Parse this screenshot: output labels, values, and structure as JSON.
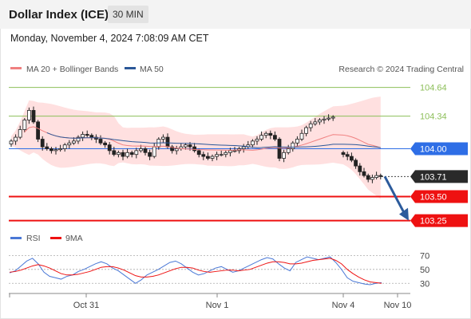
{
  "header": {
    "title": "Dollar Index (ICE)",
    "timeframe": "30 MIN",
    "timestamp": "Monday, November 4, 2024 7:08:09 AM CET"
  },
  "legend": {
    "ma20": "MA 20 + Bollinger Bands",
    "ma50": "MA 50",
    "credit": "Research © 2024 Trading Central",
    "rsi": "RSI",
    "rsi_ma": "9MA"
  },
  "colors": {
    "ma20": "#f08080",
    "ma50": "#2b5797",
    "bands": "#ffd6d6",
    "up": "#ffffff",
    "down": "#222222",
    "resistance": "#8dbf5a",
    "pivot": "#2e6ee6",
    "support": "#ee1111",
    "arrow": "#2c5b9c",
    "rsi": "#4a78d6",
    "rsi_ma": "#ee1111"
  },
  "chart_data": [
    {
      "type": "candlestick",
      "price_range": [
        103.18,
        104.72
      ],
      "x_ticks": [
        "Oct 31",
        "Nov 1",
        "Nov 4",
        "Nov 10"
      ],
      "levels": [
        {
          "label": "104.64",
          "value": 104.64,
          "kind": "resistance"
        },
        {
          "label": "104.34",
          "value": 104.34,
          "kind": "resistance"
        },
        {
          "label": "104.00",
          "value": 104.0,
          "kind": "pivot"
        },
        {
          "label": "103.71",
          "value": 103.71,
          "kind": "current"
        },
        {
          "label": "103.50",
          "value": 103.5,
          "kind": "support"
        },
        {
          "label": "103.25",
          "value": 103.25,
          "kind": "support"
        }
      ],
      "close_series": [
        104.08,
        104.12,
        104.2,
        104.3,
        104.4,
        104.28,
        104.1,
        104.02,
        104.0,
        103.98,
        103.99,
        104.0,
        104.04,
        104.06,
        104.08,
        104.12,
        104.15,
        104.14,
        104.12,
        104.1,
        104.06,
        104.04,
        103.98,
        103.94,
        103.96,
        103.92,
        103.96,
        103.94,
        103.98,
        104.0,
        103.96,
        103.92,
        104.02,
        104.1,
        104.12,
        104.02,
        103.98,
        104.0,
        104.02,
        104.04,
        104.02,
        103.98,
        103.94,
        103.92,
        103.9,
        103.92,
        103.94,
        103.94,
        103.96,
        103.98,
        103.98,
        104.0,
        104.02,
        104.04,
        104.08,
        104.1,
        104.14,
        104.16,
        104.14,
        104.1,
        103.9,
        103.96,
        104.0,
        104.06,
        104.1,
        104.16,
        104.22,
        104.26,
        104.28,
        104.3,
        104.31,
        104.32,
        104.33
      ],
      "gap_series": [
        103.94,
        103.92,
        103.88,
        103.82,
        103.76,
        103.72,
        103.68,
        103.7,
        103.72,
        103.71
      ]
    },
    {
      "type": "line",
      "name": "RSI",
      "y_ticks": [
        30,
        50,
        70
      ],
      "ylim": [
        20,
        75
      ],
      "rsi": [
        45,
        48,
        55,
        62,
        66,
        58,
        46,
        40,
        38,
        36,
        40,
        42,
        47,
        50,
        54,
        58,
        61,
        58,
        52,
        48,
        42,
        36,
        30,
        35,
        42,
        46,
        50,
        55,
        60,
        62,
        58,
        52,
        46,
        42,
        44,
        48,
        52,
        54,
        50,
        46,
        48,
        52,
        56,
        60,
        64,
        67,
        65,
        58,
        52,
        48,
        60,
        64,
        68,
        66,
        64,
        66,
        68,
        60,
        50,
        38,
        33,
        31,
        29,
        28,
        30,
        31
      ],
      "rsi_ma": [
        46,
        47,
        49,
        52,
        55,
        57,
        55,
        52,
        48,
        44,
        42,
        42,
        43,
        45,
        47,
        50,
        53,
        54,
        54,
        52,
        49,
        45,
        41,
        39,
        39,
        40,
        42,
        45,
        48,
        51,
        53,
        53,
        52,
        49,
        47,
        46,
        47,
        48,
        49,
        49,
        48,
        49,
        50,
        53,
        56,
        59,
        61,
        61,
        60,
        58,
        58,
        59,
        61,
        63,
        64,
        65,
        66,
        63,
        58,
        50,
        44,
        39,
        35,
        32,
        31,
        30
      ]
    }
  ]
}
